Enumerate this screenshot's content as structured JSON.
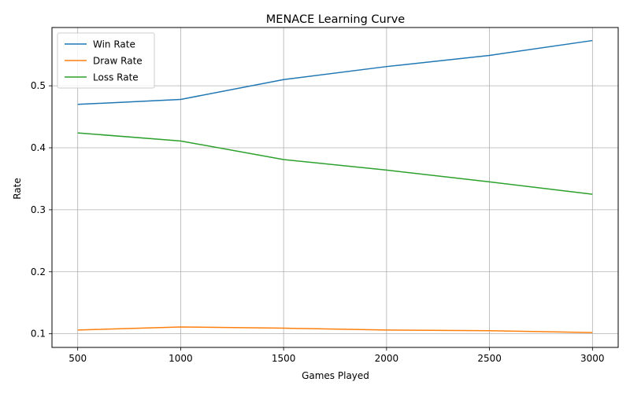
{
  "chart_data": {
    "type": "line",
    "title": "MENACE Learning Curve",
    "xlabel": "Games Played",
    "ylabel": "Rate",
    "x": [
      500,
      1000,
      1500,
      2000,
      2500,
      3000
    ],
    "xticks": [
      "500",
      "1000",
      "1500",
      "2000",
      "2500",
      "3000"
    ],
    "yticks": [
      "0.1",
      "0.2",
      "0.3",
      "0.4",
      "0.5"
    ],
    "xlim": [
      375,
      3125
    ],
    "ylim": [
      0.078,
      0.594
    ],
    "grid": true,
    "legend_position": "top-left",
    "series": [
      {
        "name": "Win Rate",
        "color": "#1f77b4",
        "values": [
          0.47,
          0.478,
          0.51,
          0.531,
          0.549,
          0.573
        ]
      },
      {
        "name": "Draw Rate",
        "color": "#ff7f0e",
        "values": [
          0.106,
          0.111,
          0.109,
          0.106,
          0.105,
          0.102
        ]
      },
      {
        "name": "Loss Rate",
        "color": "#2ca02c",
        "values": [
          0.424,
          0.411,
          0.381,
          0.364,
          0.345,
          0.325
        ]
      }
    ]
  }
}
